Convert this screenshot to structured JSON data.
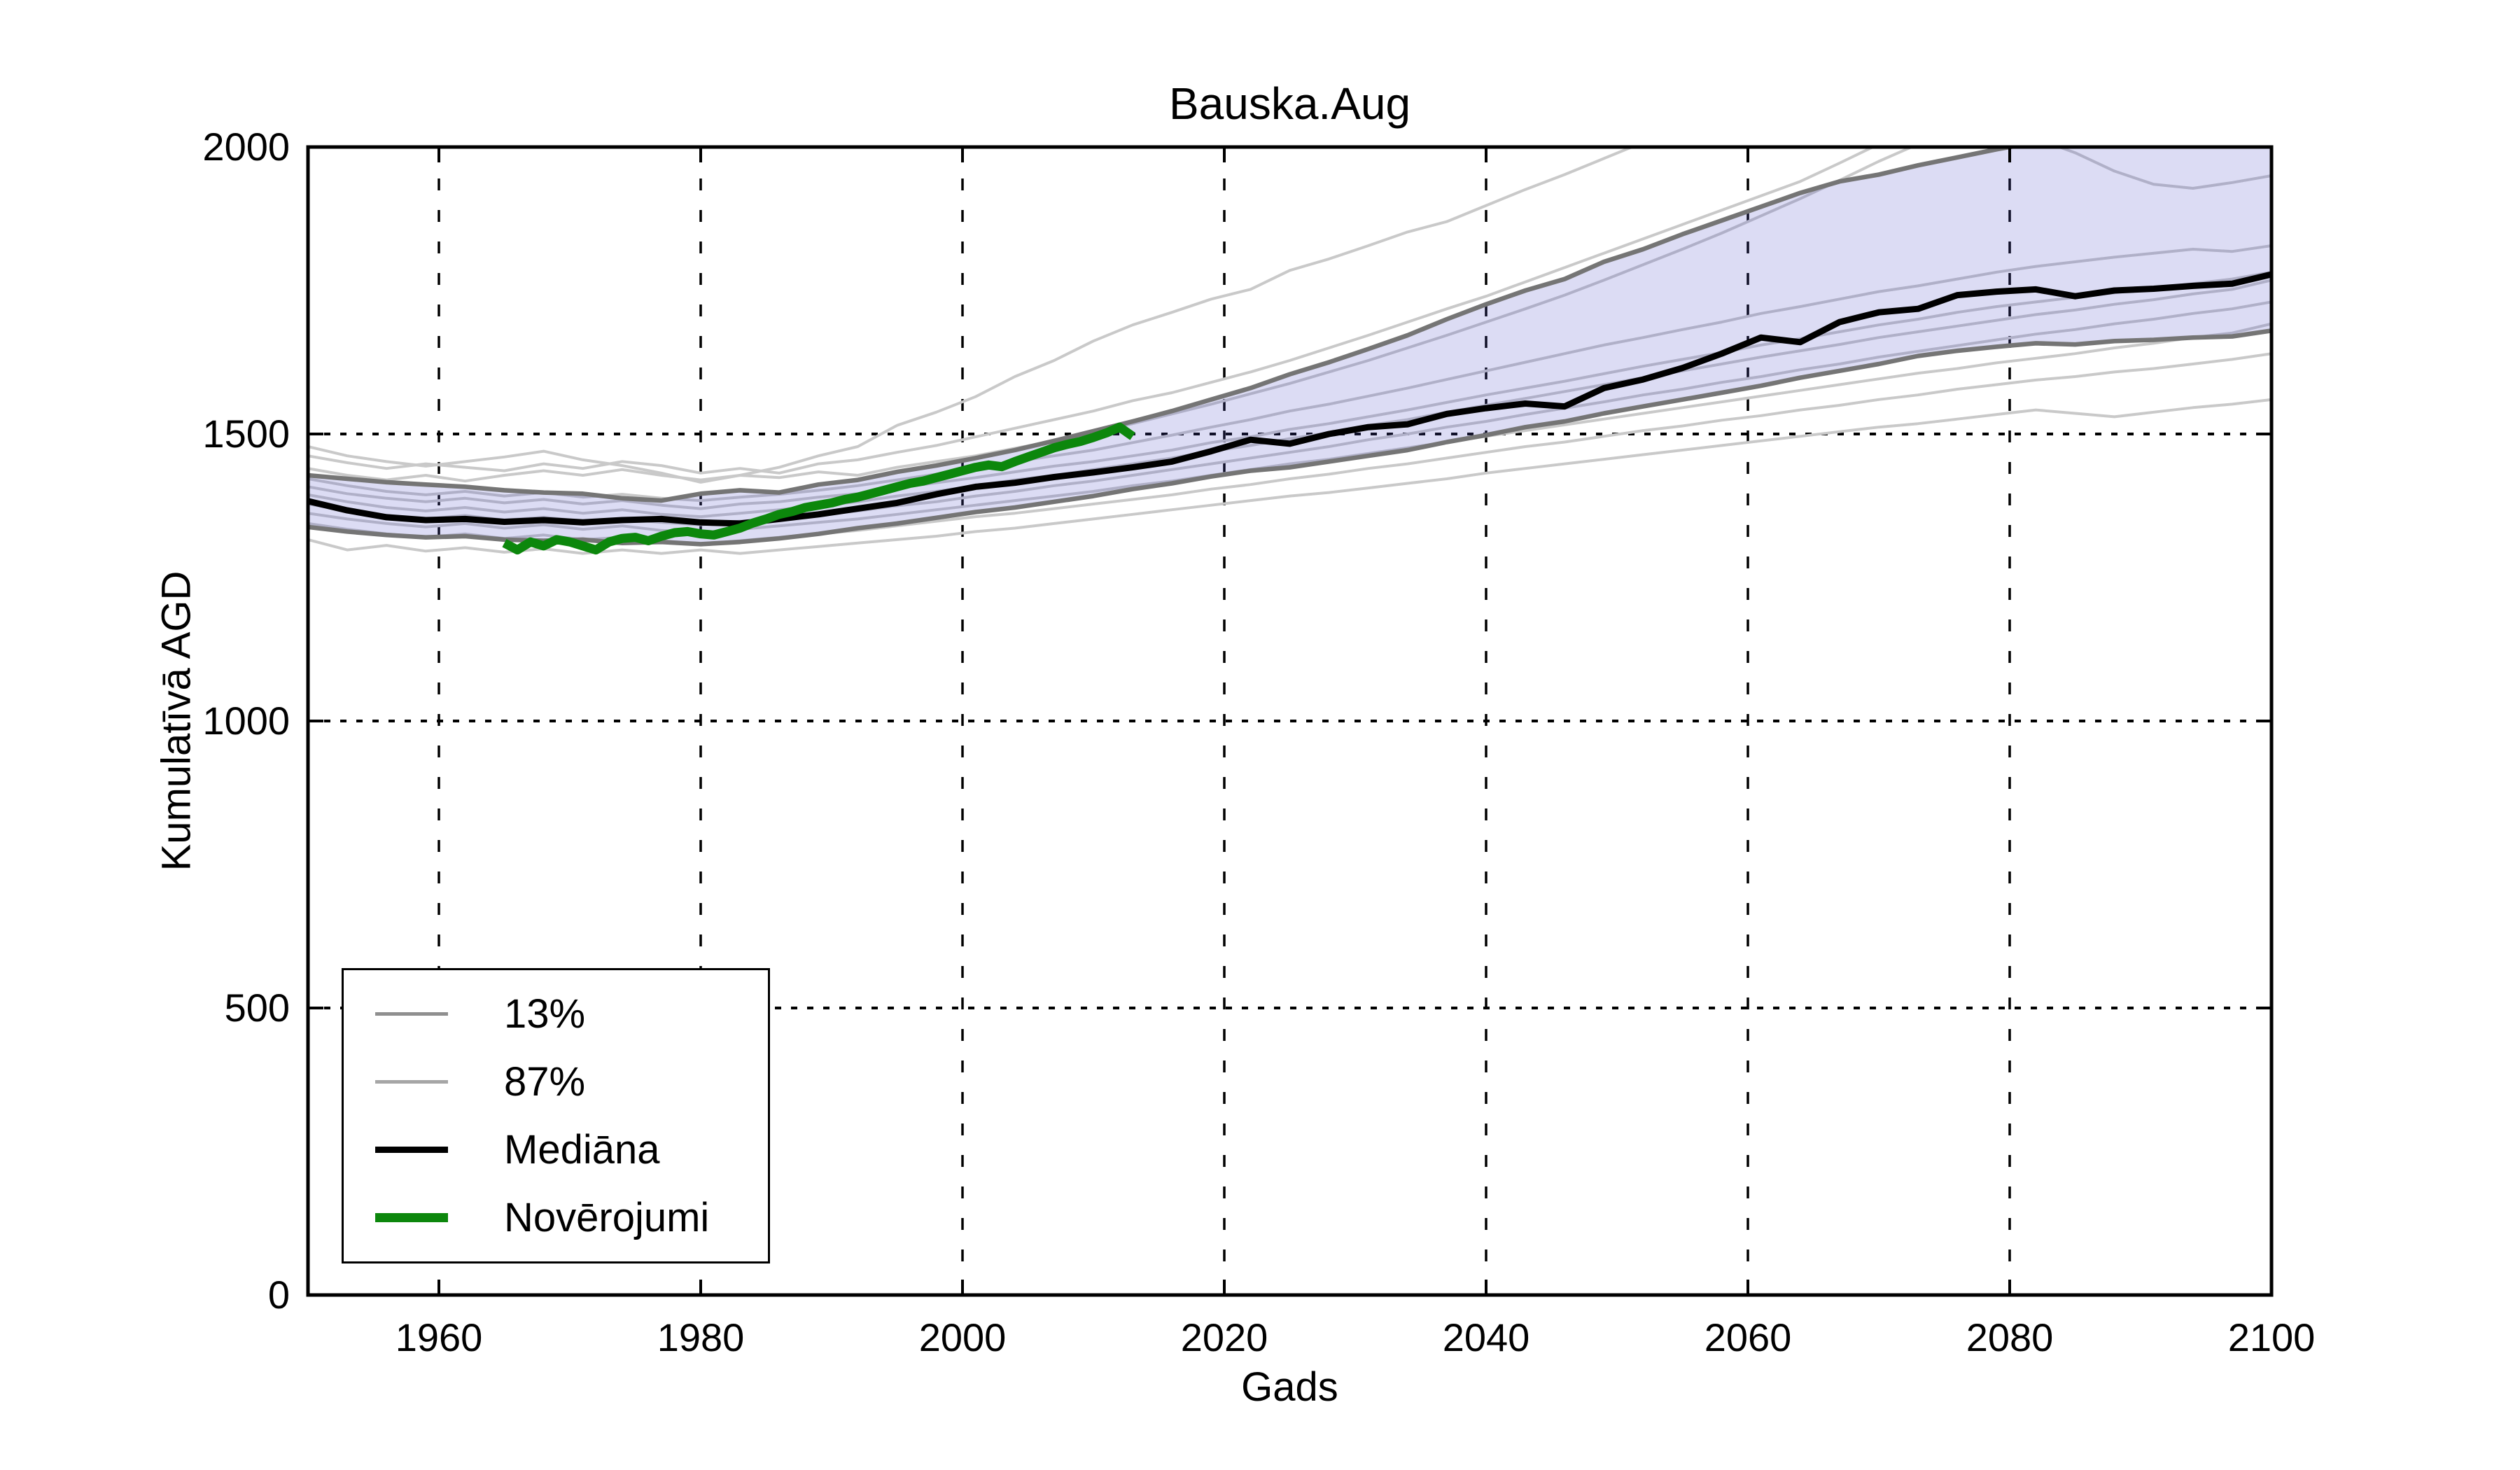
{
  "title": "Bauska.Aug",
  "xlabel": "Gads",
  "ylabel": "Kumulatīvā AGD",
  "legend": {
    "items": [
      {
        "label": "13%",
        "color": "#8f8f8f",
        "thickness": 5
      },
      {
        "label": "87%",
        "color": "#a6a6a6",
        "thickness": 5
      },
      {
        "label": "Mediāna",
        "color": "#000000",
        "thickness": 9
      },
      {
        "label": "Novērojumi",
        "color": "#0c870c",
        "thickness": 13
      }
    ]
  },
  "colors": {
    "band_fill": "rgba(80,80,200,0.20)",
    "percentile_line": "#757575",
    "ensemble_line": "#c9c9c9",
    "median_line": "#000000",
    "observations_line": "#0c870c",
    "grid": "#000000",
    "frame": "#000000"
  },
  "chart_data": {
    "type": "line",
    "title": "Bauska.Aug",
    "xlabel": "Gads",
    "ylabel": "Kumulatīvā AGD",
    "xlim": [
      1950,
      2100
    ],
    "ylim": [
      0,
      2000
    ],
    "xticks": [
      1960,
      1980,
      2000,
      2020,
      2040,
      2060,
      2080,
      2100
    ],
    "yticks": [
      0,
      500,
      1000,
      1500,
      2000
    ],
    "xtick_labels": [
      "1960",
      "1980",
      "2000",
      "2020",
      "2040",
      "2060",
      "2080",
      "2100"
    ],
    "ytick_labels": [
      "0",
      "500",
      "1000",
      "1500",
      "2000"
    ],
    "grid": true,
    "legend_position": "lower-left",
    "band": {
      "between": [
        "13%",
        "87%"
      ]
    },
    "series": [
      {
        "name": "run1",
        "role": "run",
        "x0": 1950,
        "dx": 3,
        "values": [
          1478,
          1462,
          1452,
          1444,
          1452,
          1460,
          1470,
          1455,
          1445,
          1432,
          1416,
          1428,
          1442,
          1462,
          1478,
          1515,
          1538,
          1565,
          1600,
          1628,
          1662,
          1690,
          1712,
          1735,
          1752,
          1785,
          1805,
          1828,
          1852,
          1870,
          1898,
          1926,
          1952,
          1980,
          2008,
          2040,
          2066,
          2090,
          2110,
          2128,
          2148,
          2162,
          2180,
          2196,
          2208,
          2218,
          2226,
          2234,
          2240,
          2246,
          2252
        ]
      },
      {
        "name": "run2",
        "role": "run",
        "x0": 1950,
        "dx": 3,
        "values": [
          1462,
          1450,
          1440,
          1448,
          1442,
          1436,
          1448,
          1440,
          1452,
          1445,
          1432,
          1440,
          1432,
          1448,
          1455,
          1468,
          1480,
          1495,
          1510,
          1525,
          1540,
          1558,
          1572,
          1590,
          1608,
          1628,
          1650,
          1672,
          1695,
          1718,
          1740,
          1765,
          1790,
          1815,
          1840,
          1865,
          1890,
          1915,
          1940,
          1972,
          2005,
          2030,
          2052,
          2072,
          2090,
          2105,
          2118,
          2130,
          2140,
          2148,
          2155
        ]
      },
      {
        "name": "run3",
        "role": "run",
        "x0": 1950,
        "dx": 3,
        "values": [
          1440,
          1428,
          1420,
          1428,
          1418,
          1428,
          1436,
          1428,
          1438,
          1428,
          1420,
          1428,
          1424,
          1434,
          1428,
          1442,
          1452,
          1462,
          1475,
          1488,
          1502,
          1518,
          1535,
          1552,
          1570,
          1588,
          1608,
          1628,
          1650,
          1672,
          1695,
          1718,
          1742,
          1768,
          1795,
          1822,
          1850,
          1880,
          1910,
          1942,
          1975,
          2005,
          2020,
          2028,
          2015,
          1990,
          1958,
          1935,
          1928,
          1938,
          1950
        ]
      },
      {
        "name": "run4",
        "role": "run",
        "x0": 1950,
        "dx": 3,
        "values": [
          1422,
          1410,
          1400,
          1394,
          1400,
          1392,
          1398,
          1390,
          1395,
          1388,
          1384,
          1390,
          1395,
          1402,
          1410,
          1420,
          1430,
          1440,
          1452,
          1462,
          1472,
          1485,
          1498,
          1512,
          1525,
          1540,
          1552,
          1566,
          1580,
          1595,
          1610,
          1625,
          1640,
          1655,
          1668,
          1682,
          1695,
          1710,
          1722,
          1735,
          1748,
          1758,
          1770,
          1782,
          1792,
          1800,
          1808,
          1815,
          1822,
          1818,
          1828
        ]
      },
      {
        "name": "run5",
        "role": "run",
        "x0": 1950,
        "dx": 3,
        "values": [
          1408,
          1396,
          1388,
          1382,
          1388,
          1380,
          1386,
          1378,
          1384,
          1376,
          1370,
          1378,
          1382,
          1390,
          1396,
          1406,
          1415,
          1424,
          1434,
          1444,
          1452,
          1462,
          1472,
          1485,
          1495,
          1508,
          1518,
          1530,
          1542,
          1555,
          1568,
          1580,
          1592,
          1605,
          1618,
          1630,
          1642,
          1655,
          1666,
          1678,
          1690,
          1700,
          1712,
          1722,
          1730,
          1738,
          1746,
          1754,
          1762,
          1770,
          1782
        ]
      },
      {
        "name": "run6",
        "role": "run",
        "x0": 1950,
        "dx": 3,
        "values": [
          1394,
          1382,
          1372,
          1366,
          1372,
          1364,
          1370,
          1362,
          1368,
          1360,
          1356,
          1362,
          1368,
          1375,
          1382,
          1392,
          1400,
          1410,
          1420,
          1428,
          1438,
          1448,
          1458,
          1470,
          1480,
          1492,
          1502,
          1515,
          1525,
          1538,
          1550,
          1562,
          1574,
          1586,
          1598,
          1610,
          1622,
          1634,
          1645,
          1656,
          1668,
          1678,
          1688,
          1698,
          1708,
          1716,
          1726,
          1734,
          1744,
          1752,
          1768
        ]
      },
      {
        "name": "run7",
        "role": "run",
        "x0": 1950,
        "dx": 3,
        "values": [
          1378,
          1366,
          1358,
          1352,
          1358,
          1350,
          1355,
          1348,
          1352,
          1346,
          1342,
          1348,
          1352,
          1360,
          1366,
          1375,
          1382,
          1392,
          1400,
          1410,
          1418,
          1428,
          1438,
          1448,
          1458,
          1468,
          1478,
          1490,
          1500,
          1512,
          1522,
          1534,
          1545,
          1556,
          1568,
          1578,
          1590,
          1600,
          1612,
          1622,
          1634,
          1644,
          1654,
          1664,
          1674,
          1682,
          1692,
          1700,
          1710,
          1718,
          1730
        ]
      },
      {
        "name": "run8",
        "role": "run",
        "x0": 1950,
        "dx": 3,
        "values": [
          1362,
          1352,
          1344,
          1338,
          1344,
          1336,
          1342,
          1334,
          1340,
          1332,
          1328,
          1334,
          1340,
          1346,
          1352,
          1360,
          1368,
          1376,
          1384,
          1392,
          1400,
          1410,
          1418,
          1428,
          1438,
          1448,
          1456,
          1466,
          1476,
          1486,
          1496,
          1506,
          1516,
          1526,
          1536,
          1546,
          1556,
          1566,
          1576,
          1586,
          1596,
          1606,
          1614,
          1624,
          1632,
          1640,
          1650,
          1658,
          1668,
          1676,
          1692
        ]
      },
      {
        "name": "run9",
        "role": "run",
        "x0": 1950,
        "dx": 3,
        "values": [
          1344,
          1334,
          1326,
          1320,
          1326,
          1318,
          1324,
          1316,
          1320,
          1314,
          1308,
          1314,
          1320,
          1326,
          1332,
          1340,
          1348,
          1356,
          1362,
          1370,
          1378,
          1386,
          1394,
          1404,
          1412,
          1422,
          1430,
          1440,
          1448,
          1458,
          1468,
          1478,
          1486,
          1496,
          1506,
          1514,
          1524,
          1532,
          1542,
          1550,
          1560,
          1568,
          1578,
          1586,
          1594,
          1600,
          1608,
          1614,
          1622,
          1630,
          1640
        ]
      },
      {
        "name": "run10",
        "role": "run",
        "x0": 1950,
        "dx": 3,
        "values": [
          1316,
          1298,
          1306,
          1296,
          1302,
          1294,
          1300,
          1292,
          1298,
          1292,
          1298,
          1292,
          1298,
          1304,
          1310,
          1316,
          1322,
          1330,
          1336,
          1344,
          1352,
          1360,
          1368,
          1376,
          1384,
          1392,
          1398,
          1406,
          1414,
          1422,
          1432,
          1440,
          1448,
          1456,
          1464,
          1472,
          1480,
          1488,
          1496,
          1504,
          1512,
          1518,
          1526,
          1534,
          1542,
          1536,
          1530,
          1538,
          1546,
          1552,
          1560
        ]
      },
      {
        "name": "13%",
        "role": "percentile",
        "x0": 1950,
        "dx": 3,
        "values": [
          1338,
          1330,
          1324,
          1320,
          1322,
          1316,
          1314,
          1316,
          1310,
          1312,
          1308,
          1312,
          1318,
          1326,
          1336,
          1344,
          1354,
          1364,
          1372,
          1382,
          1392,
          1404,
          1414,
          1426,
          1436,
          1442,
          1452,
          1462,
          1472,
          1486,
          1498,
          1512,
          1522,
          1536,
          1548,
          1560,
          1572,
          1584,
          1598,
          1610,
          1622,
          1636,
          1645,
          1652,
          1658,
          1656,
          1662,
          1664,
          1668,
          1670,
          1680
        ]
      },
      {
        "name": "87%",
        "role": "percentile",
        "x0": 1950,
        "dx": 3,
        "values": [
          1428,
          1422,
          1416,
          1412,
          1408,
          1402,
          1398,
          1396,
          1388,
          1384,
          1396,
          1402,
          1398,
          1412,
          1420,
          1434,
          1445,
          1458,
          1472,
          1488,
          1505,
          1522,
          1540,
          1560,
          1580,
          1604,
          1625,
          1648,
          1672,
          1700,
          1726,
          1750,
          1770,
          1800,
          1822,
          1848,
          1872,
          1896,
          1920,
          1940,
          1952,
          1968,
          1982,
          1996,
          2008,
          2030,
          2050,
          2065,
          2075,
          2085,
          2095
        ]
      },
      {
        "name": "Mediāna",
        "role": "median",
        "x0": 1950,
        "dx": 3,
        "values": [
          1383,
          1367,
          1355,
          1350,
          1352,
          1347,
          1350,
          1346,
          1350,
          1352,
          1346,
          1344,
          1352,
          1360,
          1370,
          1380,
          1395,
          1408,
          1415,
          1425,
          1433,
          1442,
          1452,
          1470,
          1490,
          1483,
          1500,
          1512,
          1517,
          1535,
          1545,
          1553,
          1548,
          1580,
          1595,
          1615,
          1640,
          1668,
          1660,
          1695,
          1712,
          1718,
          1742,
          1748,
          1752,
          1740,
          1750,
          1753,
          1758,
          1762,
          1778
        ]
      },
      {
        "name": "Novērojumi",
        "role": "observations",
        "x0": 1965,
        "dx": 1,
        "values": [
          1310,
          1298,
          1312,
          1305,
          1316,
          1312,
          1305,
          1298,
          1312,
          1318,
          1320,
          1314,
          1322,
          1328,
          1330,
          1326,
          1324,
          1330,
          1336,
          1345,
          1352,
          1360,
          1365,
          1372,
          1376,
          1380,
          1386,
          1390,
          1396,
          1402,
          1408,
          1414,
          1418,
          1424,
          1430,
          1436,
          1442,
          1446,
          1443,
          1452,
          1460,
          1468,
          1476,
          1482,
          1487,
          1494,
          1502,
          1512,
          1496
        ]
      }
    ]
  }
}
